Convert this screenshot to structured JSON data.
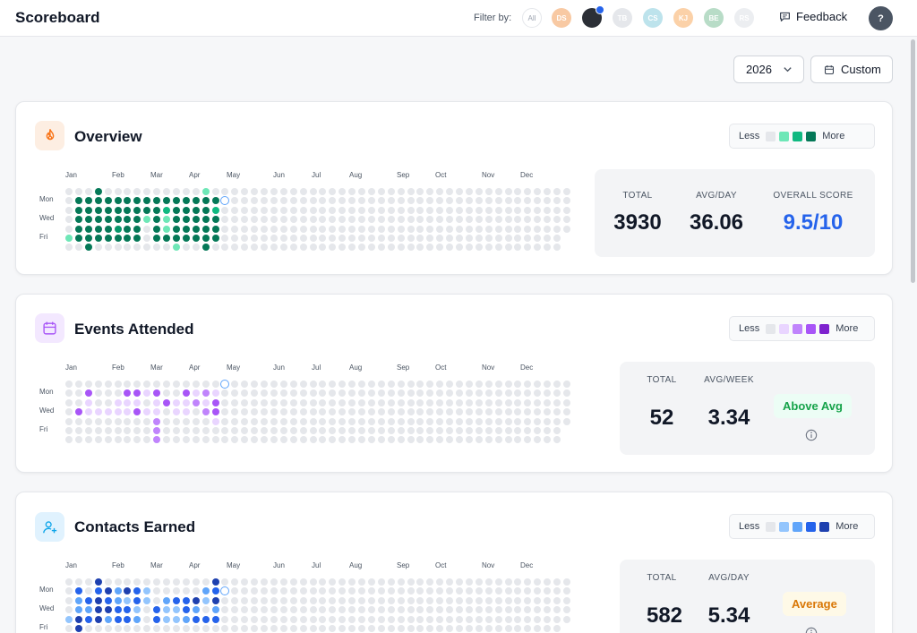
{
  "app": {
    "title": "Scoreboard"
  },
  "filter": {
    "label": "Filter by:",
    "avatars": [
      {
        "initials": "All",
        "color": "#ffffff",
        "kind": "all"
      },
      {
        "initials": "DS",
        "color": "#f8c9a3"
      },
      {
        "initials": "",
        "color": "#2b2f36",
        "kind": "photo",
        "selected": true
      },
      {
        "initials": "TB",
        "color": "#e5e7eb"
      },
      {
        "initials": "CS",
        "color": "#bde3ec"
      },
      {
        "initials": "KJ",
        "color": "#fbd1a8"
      },
      {
        "initials": "BE",
        "color": "#b8dcc7"
      },
      {
        "initials": "RS",
        "color": "#eceef1"
      }
    ]
  },
  "header": {
    "feedback_label": "Feedback",
    "help_label": "?"
  },
  "controls": {
    "year": "2026",
    "custom_label": "Custom"
  },
  "legend": {
    "less": "Less",
    "more": "More"
  },
  "months": [
    "Jan",
    "Feb",
    "Mar",
    "Apr",
    "May",
    "Jun",
    "Jul",
    "Aug",
    "Sep",
    "Oct",
    "Nov",
    "Dec"
  ],
  "weekdays": [
    "Mon",
    "Wed",
    "Fri"
  ],
  "cards": [
    {
      "id": "overview",
      "title": "Overview",
      "icon": "flame-icon",
      "icon_bg": "#fdeee2",
      "icon_color": "#f97316",
      "palette": [
        "#e5e7eb",
        "#6ee7b7",
        "#10b981",
        "#059669",
        "#047857"
      ],
      "heatmap_weeks": [
        [
          0,
          0,
          0,
          0,
          0,
          1,
          0
        ],
        [
          0,
          4,
          4,
          4,
          4,
          4,
          0
        ],
        [
          0,
          4,
          4,
          4,
          4,
          4,
          4
        ],
        [
          4,
          4,
          4,
          4,
          4,
          4,
          0
        ],
        [
          0,
          4,
          4,
          4,
          4,
          4,
          0
        ],
        [
          0,
          4,
          4,
          4,
          3,
          4,
          0
        ],
        [
          0,
          4,
          4,
          4,
          4,
          4,
          0
        ],
        [
          0,
          4,
          4,
          4,
          4,
          4,
          0
        ],
        [
          0,
          4,
          4,
          1,
          0,
          0,
          0
        ],
        [
          0,
          4,
          4,
          4,
          4,
          4,
          0
        ],
        [
          0,
          4,
          2,
          1,
          1,
          4,
          0
        ],
        [
          0,
          4,
          4,
          4,
          4,
          4,
          1
        ],
        [
          0,
          4,
          4,
          4,
          4,
          4,
          0
        ],
        [
          0,
          4,
          4,
          4,
          4,
          4,
          0
        ],
        [
          1,
          4,
          4,
          4,
          4,
          4,
          4
        ],
        [
          0,
          4,
          2,
          4,
          4,
          4,
          0
        ]
      ],
      "today_week": 16,
      "today_day": 1,
      "stats": [
        {
          "label": "TOTAL",
          "value": "3930"
        },
        {
          "label": "AVG/DAY",
          "value": "36.06"
        },
        {
          "label": "OVERALL SCORE",
          "value": "9.5/10",
          "color": "#2563eb"
        }
      ]
    },
    {
      "id": "events",
      "title": "Events Attended",
      "icon": "calendar-icon",
      "icon_bg": "#f3e8ff",
      "icon_color": "#a855f7",
      "palette": [
        "#e5e7eb",
        "#e9d5ff",
        "#c084fc",
        "#a855f7",
        "#7e22ce"
      ],
      "heatmap_weeks": [
        [
          0,
          0,
          0,
          0,
          0,
          0,
          0
        ],
        [
          0,
          0,
          0,
          3,
          0,
          0,
          0
        ],
        [
          0,
          3,
          1,
          1,
          0,
          0,
          0
        ],
        [
          0,
          0,
          0,
          1,
          0,
          0,
          0
        ],
        [
          0,
          0,
          0,
          1,
          0,
          0,
          0
        ],
        [
          0,
          0,
          1,
          1,
          0,
          0,
          0
        ],
        [
          0,
          3,
          1,
          1,
          0,
          0,
          0
        ],
        [
          0,
          3,
          1,
          3,
          0,
          0,
          0
        ],
        [
          0,
          1,
          0,
          1,
          0,
          0,
          0
        ],
        [
          0,
          3,
          1,
          1,
          2,
          2,
          2
        ],
        [
          0,
          0,
          3,
          0,
          0,
          0,
          0
        ],
        [
          0,
          0,
          1,
          1,
          0,
          0,
          0
        ],
        [
          0,
          3,
          1,
          1,
          0,
          0,
          0
        ],
        [
          0,
          1,
          2,
          0,
          0,
          0,
          0
        ],
        [
          0,
          2,
          1,
          2,
          0,
          0,
          0
        ],
        [
          0,
          1,
          3,
          3,
          1,
          0,
          0
        ]
      ],
      "today_week": 16,
      "today_day": 0,
      "stats": [
        {
          "label": "TOTAL",
          "value": "52"
        },
        {
          "label": "AVG/WEEK",
          "value": "3.34"
        }
      ],
      "badge": {
        "label": "Above Avg",
        "bg": "#ecfdf5",
        "color": "#16a34a"
      }
    },
    {
      "id": "contacts",
      "title": "Contacts Earned",
      "icon": "user-plus-icon",
      "icon_bg": "#e0f2fe",
      "icon_color": "#0ea5e9",
      "palette": [
        "#e5e7eb",
        "#93c5fd",
        "#60a5fa",
        "#2563eb",
        "#1e40af"
      ],
      "heatmap_weeks": [
        [
          0,
          0,
          0,
          0,
          1,
          0,
          0
        ],
        [
          0,
          3,
          2,
          2,
          4,
          4,
          0
        ],
        [
          0,
          0,
          3,
          2,
          3,
          0,
          0
        ],
        [
          4,
          3,
          4,
          4,
          4,
          0,
          0
        ],
        [
          0,
          4,
          3,
          4,
          2,
          0,
          0
        ],
        [
          0,
          2,
          2,
          3,
          3,
          0,
          0
        ],
        [
          0,
          4,
          1,
          3,
          3,
          0,
          0
        ],
        [
          0,
          3,
          3,
          1,
          2,
          0,
          0
        ],
        [
          0,
          1,
          1,
          0,
          0,
          0,
          0
        ],
        [
          0,
          0,
          0,
          3,
          3,
          0,
          0
        ],
        [
          0,
          0,
          2,
          1,
          1,
          0,
          0
        ],
        [
          0,
          0,
          3,
          1,
          1,
          0,
          0
        ],
        [
          0,
          0,
          3,
          3,
          2,
          0,
          0
        ],
        [
          0,
          0,
          4,
          2,
          3,
          0,
          0
        ],
        [
          0,
          2,
          1,
          0,
          3,
          0,
          0
        ],
        [
          4,
          3,
          4,
          2,
          3,
          0,
          0
        ]
      ],
      "today_week": 16,
      "today_day": 1,
      "stats": [
        {
          "label": "TOTAL",
          "value": "582"
        },
        {
          "label": "AVG/DAY",
          "value": "5.34"
        }
      ],
      "badge": {
        "label": "Average",
        "bg": "#fef9e7",
        "color": "#d97706"
      }
    }
  ]
}
